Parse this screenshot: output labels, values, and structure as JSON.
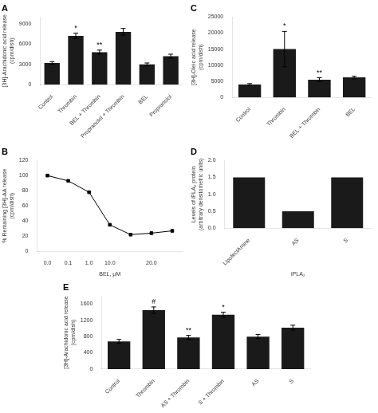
{
  "chart_data": [
    {
      "type": "bar",
      "title": "A",
      "categories": [
        "Control",
        "Thrombin",
        "BEL + Thrombin",
        "Propranolol + Thrombin",
        "BEL",
        "Propranolol"
      ],
      "values": [
        3200,
        7200,
        4800,
        7800,
        3000,
        4200
      ],
      "errors": [
        200,
        400,
        300,
        500,
        200,
        300
      ],
      "ylabel": "[3H]-Arachidonic acid release\n(cpm/dish)",
      "ylim": [
        0,
        10000
      ],
      "yticks": [
        0,
        3000,
        6000,
        9000
      ],
      "annotations": [
        {
          "category": "Thrombin",
          "text": "*"
        },
        {
          "category": "BEL + Thrombin",
          "text": "**"
        }
      ],
      "color": "#1a1a1a",
      "grid": false
    },
    {
      "type": "bar",
      "title": "C",
      "categories": [
        "Control",
        "Thrombin",
        "BEL + Thrombin",
        "BEL"
      ],
      "values": [
        4000,
        15000,
        5500,
        6200
      ],
      "errors": [
        300,
        5500,
        600,
        400
      ],
      "ylabel": "[3H]-Oleic acid release\n(cpm/dish)",
      "ylim": [
        0,
        25000
      ],
      "yticks": [
        0,
        5000,
        10000,
        15000,
        20000,
        25000
      ],
      "annotations": [
        {
          "category": "Thrombin",
          "text": "*"
        },
        {
          "category": "BEL + Thrombin",
          "text": "**"
        }
      ],
      "color": "#1a1a1a",
      "grid": false
    },
    {
      "type": "line",
      "title": "B",
      "categories": [
        "0.0",
        "0.1",
        "1.0",
        "10.0",
        null,
        "20.0",
        null
      ],
      "values": [
        100,
        93,
        78,
        35,
        22,
        24,
        27
      ],
      "xlabel": "BEL, μM",
      "ylabel": "% Remaining [3H]-AA release\n(cpm/dish)",
      "ylim": [
        0,
        120
      ],
      "yticks": [
        0,
        20,
        40,
        60,
        80,
        100,
        120
      ],
      "color": "#000000",
      "marker": "square",
      "line_style": "solid",
      "grid": false
    },
    {
      "type": "bar",
      "title": "D",
      "categories": [
        "LipofectAmine",
        "AS",
        "S"
      ],
      "values": [
        1.5,
        0.5,
        1.5
      ],
      "xlabel": "iPLA₂",
      "ylabel": "Levels of iPLA₂ protein\n(arbitrary densitometric units)",
      "ylim": [
        0,
        2.0
      ],
      "yticks": [
        {
          "value": 0,
          "label": "0.0"
        },
        0.5,
        {
          "value": 1,
          "label": "1.0"
        },
        1.5,
        {
          "value": 2,
          "label": "2.0"
        }
      ],
      "color": "#1a1a1a",
      "grid": false
    },
    {
      "type": "bar",
      "title": "E",
      "categories": [
        "Control",
        "Thrombin",
        "AS + Thrombin",
        "S + Thrombin",
        "AS",
        "S"
      ],
      "values": [
        680,
        1450,
        780,
        1340,
        800,
        1020
      ],
      "errors": [
        50,
        80,
        50,
        60,
        50,
        60
      ],
      "ylabel": "[3H]-Arachidonic acid release\n(cpm/dish)",
      "ylim": [
        0,
        1800
      ],
      "yticks": [
        0,
        400,
        800,
        1200,
        1600
      ],
      "annotations": [
        {
          "category": "Thrombin",
          "text": "#"
        },
        {
          "category": "AS + Thrombin",
          "text": "**"
        },
        {
          "category": "S + Thrombin",
          "text": "*"
        }
      ],
      "color": "#1a1a1a",
      "grid": false
    }
  ]
}
